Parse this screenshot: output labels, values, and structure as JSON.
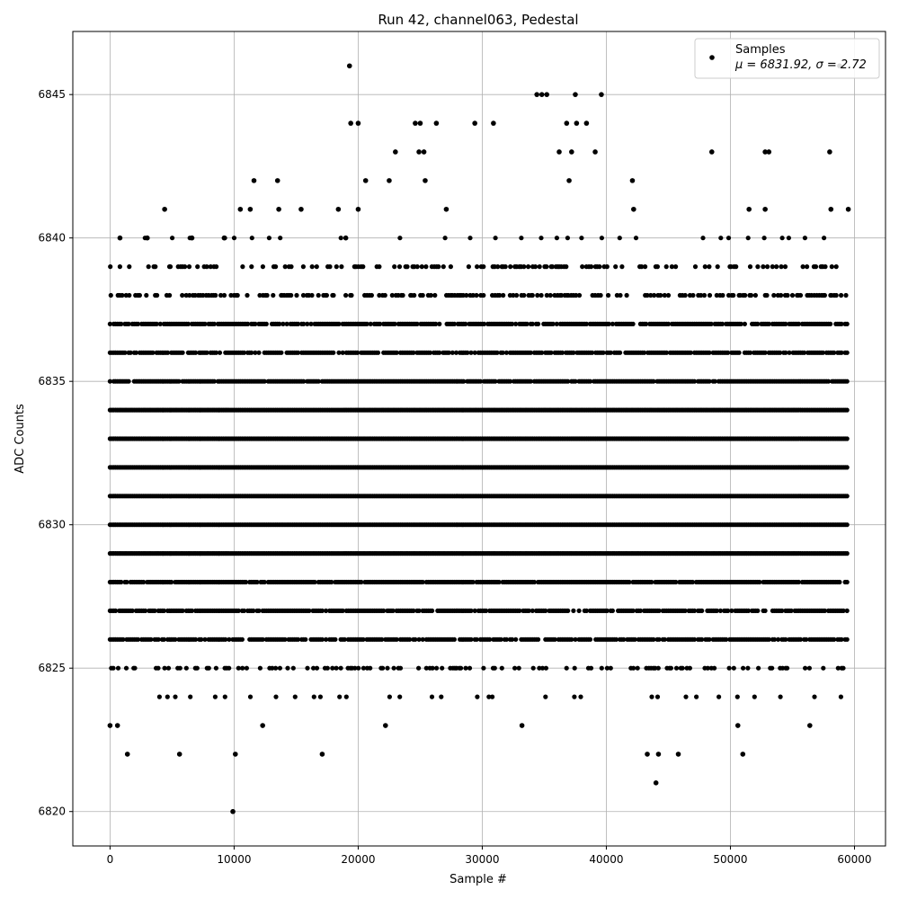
{
  "chart_data": {
    "type": "scatter",
    "title": "Run 42, channel063, Pedestal",
    "xlabel": "Sample #",
    "ylabel": "ADC Counts",
    "xlim": [
      -3000,
      62500
    ],
    "ylim": [
      6818.8,
      6847.2
    ],
    "x_ticks": [
      0,
      10000,
      20000,
      30000,
      40000,
      50000,
      60000
    ],
    "y_ticks": [
      6820,
      6825,
      6830,
      6835,
      6840,
      6845
    ],
    "grid": true,
    "legend": {
      "placement": "top-right",
      "entries": [
        {
          "label": "Samples",
          "stats": "μ = 6831.92, σ = 2.72"
        }
      ]
    },
    "marker_color": "#000000",
    "series": [
      {
        "name": "Samples",
        "x_range": [
          0,
          59500
        ],
        "dense_levels": [
          6826,
          6827,
          6828,
          6829,
          6830,
          6831,
          6832,
          6833,
          6834,
          6835,
          6836,
          6837
        ],
        "sparse_levels": [
          6825,
          6838,
          6839
        ],
        "outliers": [
          {
            "x": 0,
            "y": 6823
          },
          {
            "x": 600,
            "y": 6823
          },
          {
            "x": 1400,
            "y": 6822
          },
          {
            "x": 800,
            "y": 6840
          },
          {
            "x": 3000,
            "y": 6840
          },
          {
            "x": 4400,
            "y": 6841
          },
          {
            "x": 5600,
            "y": 6822
          },
          {
            "x": 6600,
            "y": 6840
          },
          {
            "x": 9200,
            "y": 6840
          },
          {
            "x": 9900,
            "y": 6820
          },
          {
            "x": 10100,
            "y": 6822
          },
          {
            "x": 10500,
            "y": 6841
          },
          {
            "x": 11300,
            "y": 6841
          },
          {
            "x": 11600,
            "y": 6842
          },
          {
            "x": 12300,
            "y": 6823
          },
          {
            "x": 13500,
            "y": 6842
          },
          {
            "x": 13600,
            "y": 6841
          },
          {
            "x": 15400,
            "y": 6841
          },
          {
            "x": 17100,
            "y": 6822
          },
          {
            "x": 18400,
            "y": 6841
          },
          {
            "x": 19000,
            "y": 6840
          },
          {
            "x": 19300,
            "y": 6846
          },
          {
            "x": 19400,
            "y": 6844
          },
          {
            "x": 20000,
            "y": 6844
          },
          {
            "x": 20000,
            "y": 6841
          },
          {
            "x": 20600,
            "y": 6842
          },
          {
            "x": 22200,
            "y": 6823
          },
          {
            "x": 22500,
            "y": 6842
          },
          {
            "x": 23000,
            "y": 6843
          },
          {
            "x": 24600,
            "y": 6844
          },
          {
            "x": 25000,
            "y": 6844
          },
          {
            "x": 24900,
            "y": 6843
          },
          {
            "x": 25300,
            "y": 6843
          },
          {
            "x": 25400,
            "y": 6842
          },
          {
            "x": 26300,
            "y": 6844
          },
          {
            "x": 27100,
            "y": 6841
          },
          {
            "x": 29400,
            "y": 6844
          },
          {
            "x": 30900,
            "y": 6844
          },
          {
            "x": 33200,
            "y": 6823
          },
          {
            "x": 34400,
            "y": 6845
          },
          {
            "x": 34800,
            "y": 6845
          },
          {
            "x": 35200,
            "y": 6845
          },
          {
            "x": 36200,
            "y": 6843
          },
          {
            "x": 36800,
            "y": 6844
          },
          {
            "x": 37000,
            "y": 6842
          },
          {
            "x": 37200,
            "y": 6843
          },
          {
            "x": 37500,
            "y": 6845
          },
          {
            "x": 37600,
            "y": 6844
          },
          {
            "x": 38400,
            "y": 6844
          },
          {
            "x": 39100,
            "y": 6843
          },
          {
            "x": 39600,
            "y": 6845
          },
          {
            "x": 42100,
            "y": 6842
          },
          {
            "x": 42200,
            "y": 6841
          },
          {
            "x": 43300,
            "y": 6822
          },
          {
            "x": 44000,
            "y": 6821
          },
          {
            "x": 44200,
            "y": 6822
          },
          {
            "x": 45800,
            "y": 6822
          },
          {
            "x": 48500,
            "y": 6843
          },
          {
            "x": 50600,
            "y": 6823
          },
          {
            "x": 51000,
            "y": 6822
          },
          {
            "x": 51500,
            "y": 6841
          },
          {
            "x": 52800,
            "y": 6841
          },
          {
            "x": 52800,
            "y": 6843
          },
          {
            "x": 53100,
            "y": 6843
          },
          {
            "x": 56400,
            "y": 6823
          },
          {
            "x": 58000,
            "y": 6843
          },
          {
            "x": 58100,
            "y": 6841
          },
          {
            "x": 58800,
            "y": 6846
          },
          {
            "x": 59500,
            "y": 6841
          }
        ]
      }
    ]
  }
}
